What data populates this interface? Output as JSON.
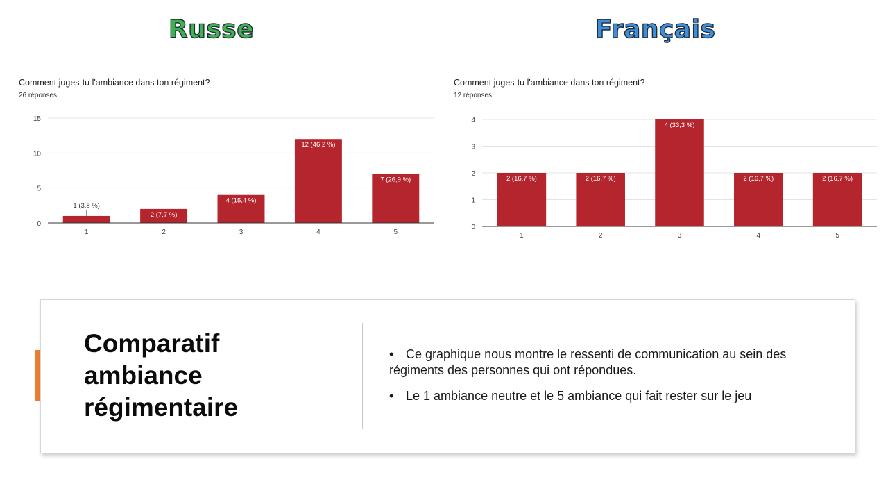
{
  "headings": {
    "left": "Russe",
    "right": "Français"
  },
  "chart_data": [
    {
      "type": "bar",
      "title": "Comment juges-tu l'ambiance dans ton régiment?",
      "subtitle": "26 réponses",
      "categories": [
        "1",
        "2",
        "3",
        "4",
        "5"
      ],
      "values": [
        1,
        2,
        4,
        12,
        7
      ],
      "data_labels": [
        "1 (3,8 %)",
        "2 (7,7 %)",
        "4 (15,4 %)",
        "12 (46,2 %)",
        "7 (26,9 %)"
      ],
      "yticks": [
        "0",
        "5",
        "10",
        "15"
      ],
      "ylim": [
        0,
        15
      ],
      "grid": true,
      "bar_color": "#b5252d"
    },
    {
      "type": "bar",
      "title": "Comment juges-tu l'ambiance dans ton régiment?",
      "subtitle": "12 réponses",
      "categories": [
        "1",
        "2",
        "3",
        "4",
        "5"
      ],
      "values": [
        2,
        2,
        4,
        2,
        2
      ],
      "data_labels": [
        "2 (16,7 %)",
        "2 (16,7 %)",
        "4 (33,3 %)",
        "2 (16,7 %)",
        "2 (16,7 %)"
      ],
      "yticks": [
        "0",
        "1",
        "2",
        "3",
        "4"
      ],
      "ylim": [
        0,
        4
      ],
      "grid": true,
      "bar_color": "#b5252d"
    }
  ],
  "card": {
    "title": "Comparatif ambiance régimentaire",
    "bullet_symbol": "•",
    "bullets": [
      "Ce graphique nous montre le ressenti de communication au sein des régiments des personnes qui ont répondues.",
      "Le 1 ambiance neutre et le 5 ambiance qui fait rester sur le jeu"
    ],
    "accent_color": "#ed7d31"
  }
}
